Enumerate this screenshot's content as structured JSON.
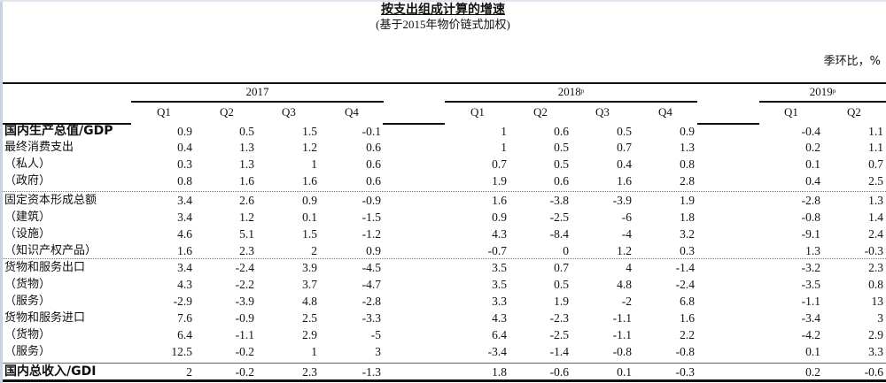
{
  "header": {
    "title": "按支出组成计算的增速",
    "subtitle": "(基于2015年物价链式加权)",
    "unit": "季环比，%"
  },
  "years": [
    {
      "label": "2017",
      "suffix": ""
    },
    {
      "label": "2018",
      "suffix": "p"
    },
    {
      "label": "2019",
      "suffix": "p"
    }
  ],
  "quarters": {
    "y2017": [
      "Q1",
      "Q2",
      "Q3",
      "Q4"
    ],
    "y2018": [
      "Q1",
      "Q2",
      "Q3",
      "Q4"
    ],
    "y2019": [
      "Q1",
      "Q2"
    ]
  },
  "rows": [
    {
      "label": "国内生产总值/GDP",
      "bold": true,
      "values": [
        "0.9",
        "0.5",
        "1.5",
        "-0.1",
        "1",
        "0.6",
        "0.5",
        "0.9",
        "-0.4",
        "1.1"
      ]
    },
    {
      "label": "最终消费支出",
      "bold": false,
      "values": [
        "0.4",
        "1.3",
        "1.2",
        "0.6",
        "1",
        "0.5",
        "0.7",
        "1.3",
        "0.2",
        "1.1"
      ]
    },
    {
      "label": "（私人）",
      "bold": false,
      "values": [
        "0.3",
        "1.3",
        "1",
        "0.6",
        "0.7",
        "0.5",
        "0.4",
        "0.8",
        "0.1",
        "0.7"
      ]
    },
    {
      "label": "（政府）",
      "bold": false,
      "values": [
        "0.8",
        "1.6",
        "1.6",
        "0.6",
        "1.9",
        "0.6",
        "1.6",
        "2.8",
        "0.4",
        "2.5"
      ]
    },
    {
      "label": "固定资本形成总额",
      "bold": false,
      "values": [
        "3.4",
        "2.6",
        "0.9",
        "-0.9",
        "1.6",
        "-3.8",
        "-3.9",
        "1.9",
        "-2.8",
        "1.3"
      ]
    },
    {
      "label": "（建筑）",
      "bold": false,
      "values": [
        "3.4",
        "1.2",
        "0.1",
        "-1.5",
        "0.9",
        "-2.5",
        "-6",
        "1.8",
        "-0.8",
        "1.4"
      ]
    },
    {
      "label": "（设施）",
      "bold": false,
      "values": [
        "4.6",
        "5.1",
        "1.5",
        "-1.2",
        "4.3",
        "-8.4",
        "-4",
        "3.2",
        "-9.1",
        "2.4"
      ]
    },
    {
      "label": "（知识产权产品）",
      "bold": false,
      "values": [
        "1.6",
        "2.3",
        "2",
        "0.9",
        "-0.7",
        "0",
        "1.2",
        "0.3",
        "1.3",
        "-0.3"
      ]
    },
    {
      "label": "货物和服务出口",
      "bold": false,
      "values": [
        "3.4",
        "-2.4",
        "3.9",
        "-4.5",
        "3.5",
        "0.7",
        "4",
        "-1.4",
        "-3.2",
        "2.3"
      ]
    },
    {
      "label": "（货物）",
      "bold": false,
      "values": [
        "4.3",
        "-2.2",
        "3.7",
        "-4.7",
        "3.5",
        "0.5",
        "4.8",
        "-2.4",
        "-3.5",
        "0.8"
      ]
    },
    {
      "label": "（服务）",
      "bold": false,
      "values": [
        "-2.9",
        "-3.9",
        "4.8",
        "-2.8",
        "3.3",
        "1.9",
        "-2",
        "6.8",
        "-1.1",
        "13"
      ]
    },
    {
      "label": "货物和服务进口",
      "bold": false,
      "values": [
        "7.6",
        "-0.9",
        "2.5",
        "-3.3",
        "4.3",
        "-2.3",
        "-1.1",
        "1.6",
        "-3.4",
        "3"
      ]
    },
    {
      "label": "（货物）",
      "bold": false,
      "values": [
        "6.4",
        "-1.1",
        "2.9",
        "-5",
        "6.4",
        "-2.5",
        "-1.1",
        "2.2",
        "-4.2",
        "2.9"
      ]
    },
    {
      "label": "（服务）",
      "bold": false,
      "values": [
        "12.5",
        "-0.2",
        "1",
        "3",
        "-3.4",
        "-1.4",
        "-0.8",
        "-0.8",
        "0.1",
        "3.3"
      ]
    },
    {
      "label": "国内总收入/GDI",
      "bold": true,
      "values": [
        "2",
        "-0.2",
        "2.3",
        "-1.3",
        "1.8",
        "-0.6",
        "0.1",
        "-0.3",
        "0.2",
        "-0.6"
      ]
    }
  ]
}
